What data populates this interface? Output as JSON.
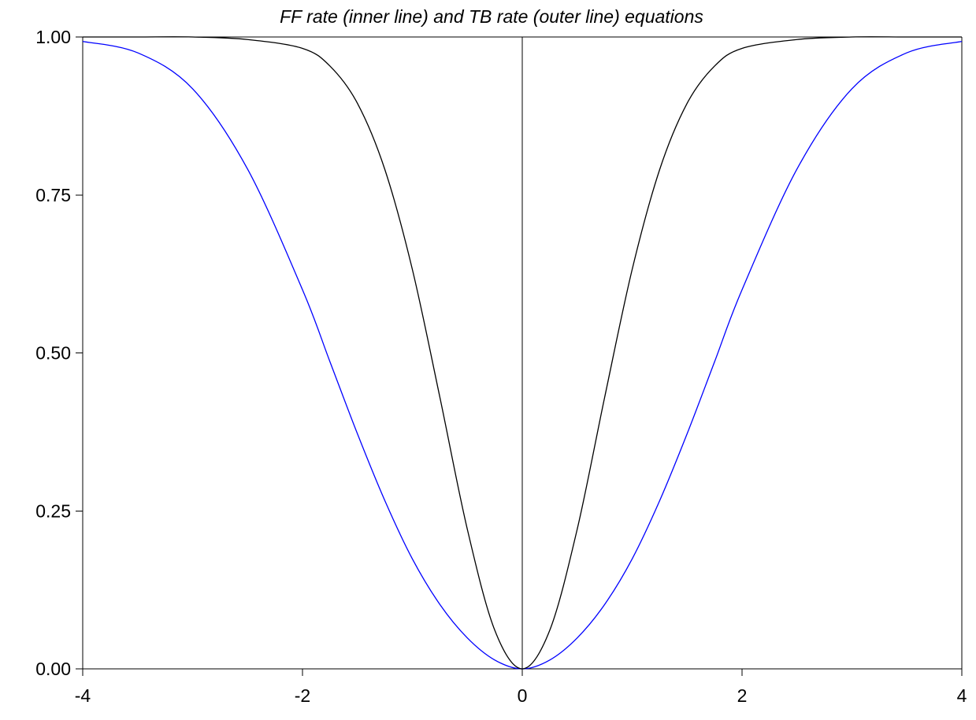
{
  "chart_data": {
    "type": "line",
    "title": "FF rate (inner line) and TB rate (outer line) equations",
    "xlabel": "",
    "ylabel": "",
    "xlim": [
      -4,
      4
    ],
    "ylim": [
      0,
      1
    ],
    "x_ticks": [
      -4,
      -2,
      0,
      2,
      4
    ],
    "x_tick_labels": [
      "-4",
      "-2",
      "0",
      "2",
      "4"
    ],
    "y_ticks": [
      0,
      0.25,
      0.5,
      0.75,
      1
    ],
    "y_tick_labels": [
      "0.00",
      "0.25",
      "0.50",
      "0.75",
      "1.00"
    ],
    "grid": false,
    "x": [
      -4,
      -3.5,
      -3,
      -2.5,
      -2,
      -1.75,
      -1.5,
      -1.25,
      -1,
      -0.75,
      -0.5,
      -0.25,
      0,
      0.25,
      0.5,
      0.75,
      1,
      1.25,
      1.5,
      1.75,
      2,
      2.5,
      3,
      3.5,
      4
    ],
    "series": [
      {
        "color": "#000000",
        "values": [
          1.0,
          1.0,
          1.0,
          0.996,
          0.982,
          0.954,
          0.895,
          0.79,
          0.632,
          0.43,
          0.221,
          0.061,
          0.0,
          0.061,
          0.221,
          0.43,
          0.632,
          0.79,
          0.895,
          0.954,
          0.982,
          0.996,
          1.0,
          1.0,
          1.0
        ]
      },
      {
        "color": "#0000ff",
        "values": [
          0.993,
          0.975,
          0.918,
          0.791,
          0.6,
          0.486,
          0.372,
          0.266,
          0.174,
          0.102,
          0.049,
          0.014,
          0.0,
          0.014,
          0.049,
          0.102,
          0.174,
          0.266,
          0.372,
          0.486,
          0.6,
          0.791,
          0.918,
          0.975,
          0.993
        ]
      }
    ]
  }
}
